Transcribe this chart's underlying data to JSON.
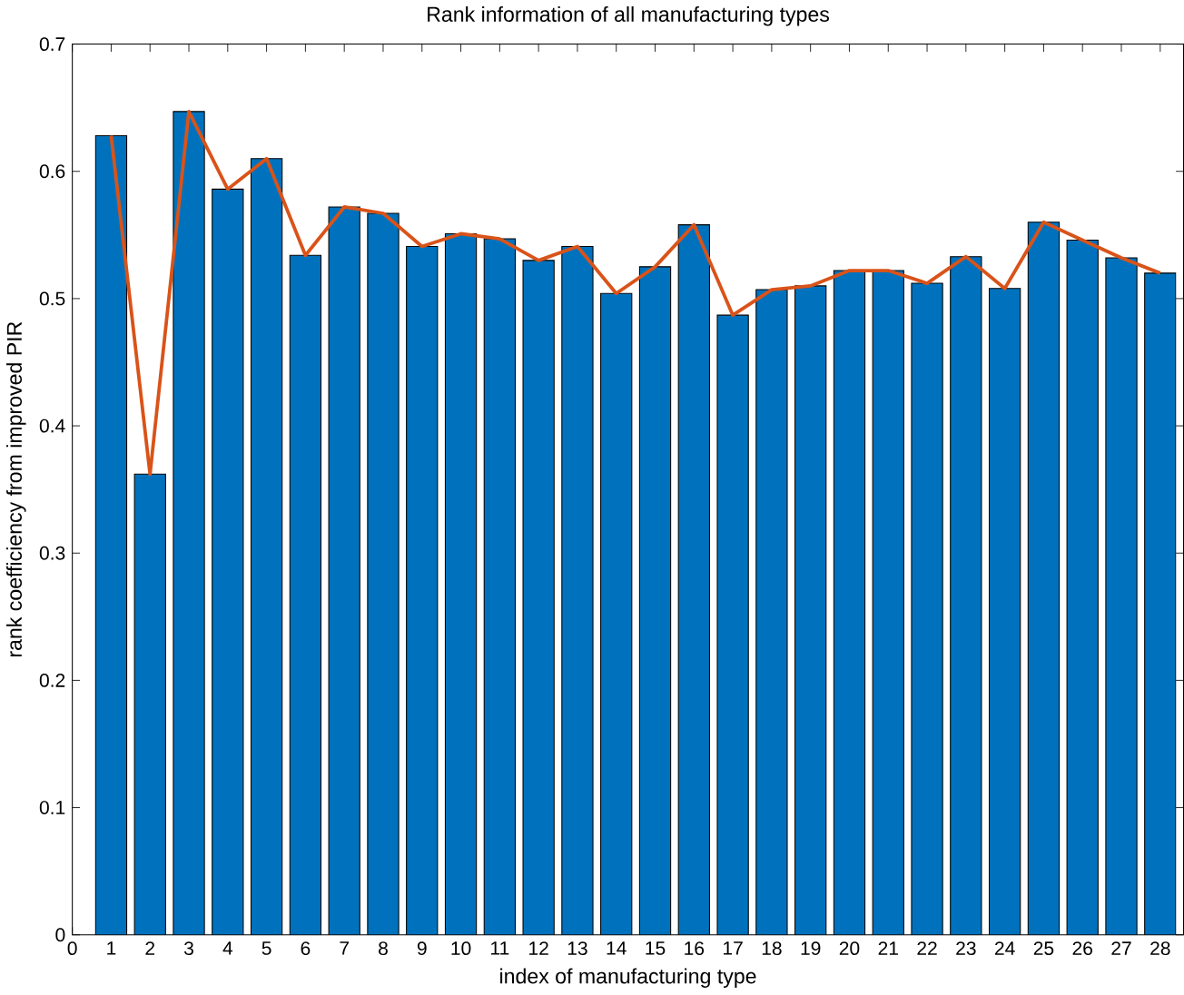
{
  "chart_data": {
    "type": "bar",
    "title": "Rank information of all manufacturing types",
    "xlabel": "index of manufacturing type",
    "ylabel": "rank coefficiency from improved PIR",
    "x": [
      1,
      2,
      3,
      4,
      5,
      6,
      7,
      8,
      9,
      10,
      11,
      12,
      13,
      14,
      15,
      16,
      17,
      18,
      19,
      20,
      21,
      22,
      23,
      24,
      25,
      26,
      27,
      28
    ],
    "series": [
      {
        "color": "#0072bd",
        "values": [
          0.628,
          0.362,
          0.647,
          0.586,
          0.61,
          0.534,
          0.572,
          0.567,
          0.541,
          0.551,
          0.547,
          0.53,
          0.541,
          0.504,
          0.525,
          0.558,
          0.487,
          0.507,
          0.51,
          0.522,
          0.522,
          0.512,
          0.533,
          0.508,
          0.56,
          0.546,
          0.532,
          0.52
        ]
      },
      {
        "type": "line",
        "color": "#d95319",
        "values": [
          0.628,
          0.362,
          0.647,
          0.586,
          0.61,
          0.534,
          0.572,
          0.567,
          0.541,
          0.551,
          0.547,
          0.53,
          0.541,
          0.504,
          0.525,
          0.558,
          0.487,
          0.507,
          0.51,
          0.522,
          0.522,
          0.512,
          0.533,
          0.508,
          0.56,
          0.546,
          0.532,
          0.52
        ]
      }
    ],
    "xlim": [
      0,
      28.6
    ],
    "ylim": [
      0,
      0.7
    ],
    "xticks": [
      0,
      1,
      2,
      3,
      4,
      5,
      6,
      7,
      8,
      9,
      10,
      11,
      12,
      13,
      14,
      15,
      16,
      17,
      18,
      19,
      20,
      21,
      22,
      23,
      24,
      25,
      26,
      27,
      28
    ],
    "yticks": [
      0,
      0.1,
      0.2,
      0.3,
      0.4,
      0.5,
      0.6,
      0.7
    ],
    "grid": false
  }
}
